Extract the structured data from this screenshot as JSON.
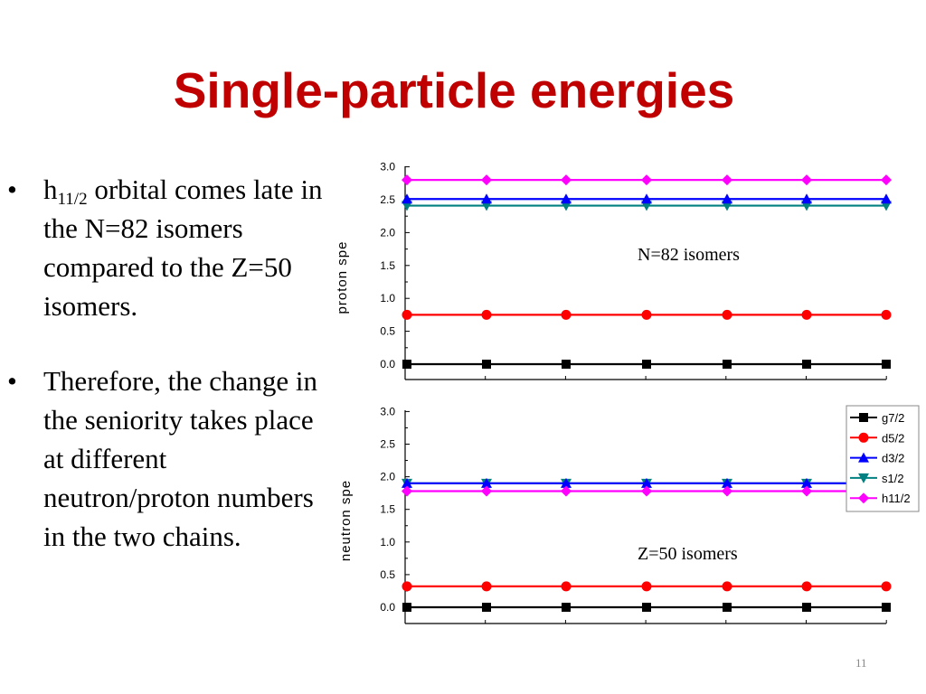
{
  "slide": {
    "title": "Single-particle energies",
    "page_number": "11",
    "bullets": [
      {
        "prefix": "h",
        "subscript": "11/2",
        "text": " orbital comes late in the N=82 isomers compared to the Z=50 isomers."
      },
      {
        "prefix": "",
        "subscript": "",
        "text": "Therefore, the change in the seniority takes place at different neutron/proton numbers in the two chains."
      }
    ],
    "bullet_symbol": "•"
  },
  "chart_data": [
    {
      "type": "line",
      "ylabel": "proton spe",
      "annotation": "N=82 isomers",
      "ylim": [
        0,
        3.0
      ],
      "yticks": [
        "0.0",
        "0.5",
        "1.0",
        "1.5",
        "2.0",
        "2.5",
        "3.0"
      ],
      "x": [
        1,
        2,
        3,
        4,
        5,
        6,
        7
      ],
      "series": [
        {
          "name": "g7/2",
          "marker": "square",
          "color": "#000000",
          "values": [
            0.0,
            0.0,
            0.0,
            0.0,
            0.0,
            0.0,
            0.0
          ]
        },
        {
          "name": "d5/2",
          "marker": "circle",
          "color": "#ff0000",
          "values": [
            0.75,
            0.75,
            0.75,
            0.75,
            0.75,
            0.75,
            0.75
          ]
        },
        {
          "name": "d3/2",
          "marker": "triangle-up",
          "color": "#0000ff",
          "values": [
            2.51,
            2.51,
            2.51,
            2.51,
            2.51,
            2.51,
            2.51
          ]
        },
        {
          "name": "s1/2",
          "marker": "triangle-down",
          "color": "#008080",
          "values": [
            2.41,
            2.41,
            2.41,
            2.41,
            2.41,
            2.41,
            2.41
          ]
        },
        {
          "name": "h11/2",
          "marker": "diamond",
          "color": "#ff00ff",
          "values": [
            2.8,
            2.8,
            2.8,
            2.8,
            2.8,
            2.8,
            2.8
          ]
        }
      ]
    },
    {
      "type": "line",
      "ylabel": "neutron spe",
      "annotation": "Z=50 isomers",
      "ylim": [
        0,
        3.0
      ],
      "yticks": [
        "0.0",
        "0.5",
        "1.0",
        "1.5",
        "2.0",
        "2.5",
        "3.0"
      ],
      "legend": "top-right",
      "x": [
        1,
        2,
        3,
        4,
        5,
        6,
        7
      ],
      "series": [
        {
          "name": "g7/2",
          "marker": "square",
          "color": "#000000",
          "values": [
            0.0,
            0.0,
            0.0,
            0.0,
            0.0,
            0.0,
            0.0
          ]
        },
        {
          "name": "d5/2",
          "marker": "circle",
          "color": "#ff0000",
          "values": [
            0.32,
            0.32,
            0.32,
            0.32,
            0.32,
            0.32,
            0.32
          ]
        },
        {
          "name": "d3/2",
          "marker": "triangle-up",
          "color": "#0000ff",
          "values": [
            1.9,
            1.9,
            1.9,
            1.9,
            1.9,
            1.9,
            1.9
          ]
        },
        {
          "name": "s1/2",
          "marker": "triangle-down",
          "color": "#008080",
          "values": [
            1.9,
            1.9,
            1.9,
            1.9,
            1.9,
            1.9,
            1.9
          ]
        },
        {
          "name": "h11/2",
          "marker": "diamond",
          "color": "#ff00ff",
          "values": [
            1.78,
            1.78,
            1.78,
            1.78,
            1.78,
            1.78,
            1.78
          ]
        }
      ]
    }
  ]
}
